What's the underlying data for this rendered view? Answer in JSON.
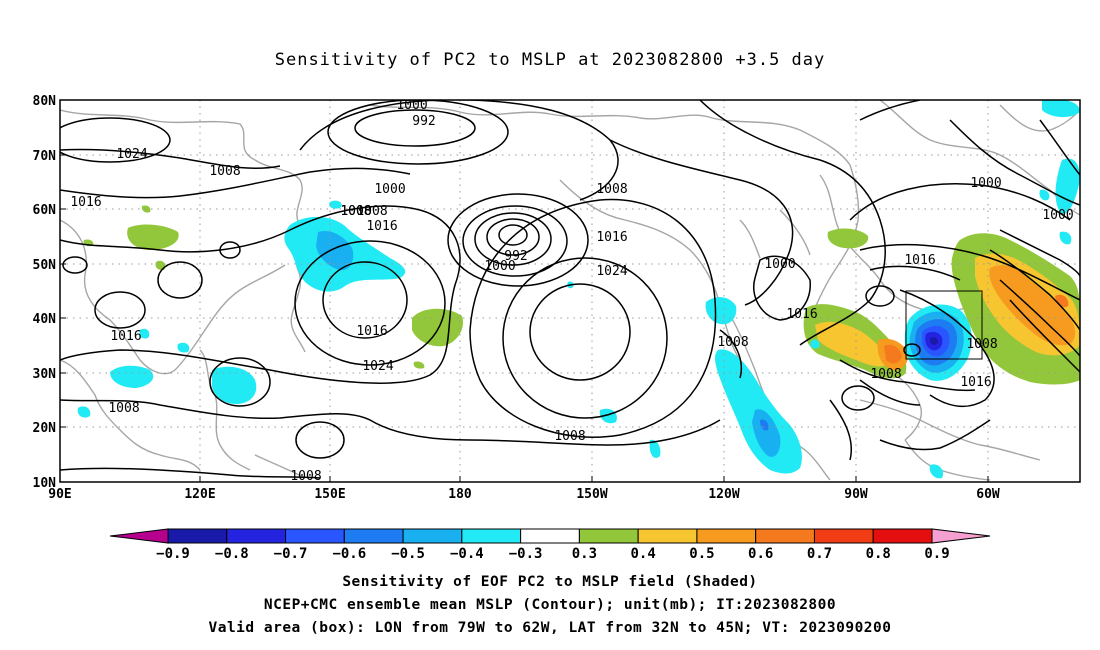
{
  "title": "Sensitivity of PC2 to MSLP at 2023082800 +3.5 day",
  "lat_labels": [
    "80N",
    "70N",
    "60N",
    "50N",
    "40N",
    "30N",
    "20N",
    "10N"
  ],
  "lon_labels": [
    "90E",
    "120E",
    "150E",
    "180",
    "150W",
    "120W",
    "90W",
    "60W"
  ],
  "colorbar": {
    "labels": [
      "-0.9",
      "-0.8",
      "-0.7",
      "-0.6",
      "-0.5",
      "-0.4",
      "-0.3",
      "0.3",
      "0.4",
      "0.5",
      "0.6",
      "0.7",
      "0.8",
      "0.9"
    ],
    "colors": [
      "#b8008f",
      "#1a1aa8",
      "#2323e0",
      "#2a56ff",
      "#1e7cf2",
      "#18b0f0",
      "#22eaf5",
      "#ffffff",
      "#93c73b",
      "#f7c530",
      "#f79a20",
      "#f57a1e",
      "#f23d14",
      "#e60f0f",
      "#f5a0d0"
    ]
  },
  "contour_labels": [
    "1000",
    "992",
    "1024",
    "1008",
    "1016",
    "1008",
    "1000",
    "1008",
    "1016",
    "1024",
    "992",
    "1000",
    "1008",
    "1016",
    "1024",
    "1016",
    "1008",
    "1008",
    "1008",
    "1016",
    "1000",
    "1008",
    "1016",
    "1008",
    "1008",
    "1016",
    "1000",
    "1000",
    "1008",
    "1016"
  ],
  "captions": {
    "line1": "Sensitivity of EOF PC2 to MSLP field (Shaded)",
    "line2": "NCEP+CMC ensemble mean MSLP (Contour); unit(mb); IT:2023082800",
    "line3": "Valid area (box): LON from 79W to 62W, LAT from 32N to 45N; VT: 2023090200"
  }
}
